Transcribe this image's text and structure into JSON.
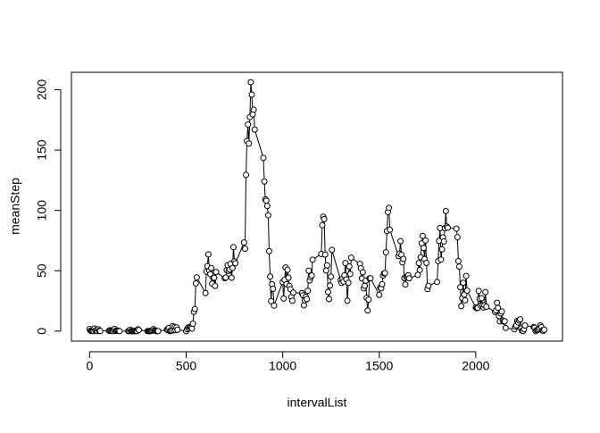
{
  "chart_data": {
    "type": "line",
    "xlabel": "intervalList",
    "ylabel": "meanStep",
    "color": "#000000",
    "x": [
      0,
      5,
      10,
      15,
      20,
      25,
      30,
      35,
      40,
      45,
      50,
      55,
      100,
      105,
      110,
      115,
      120,
      125,
      130,
      135,
      140,
      145,
      150,
      155,
      200,
      205,
      210,
      215,
      220,
      225,
      230,
      235,
      240,
      245,
      250,
      255,
      300,
      305,
      310,
      315,
      320,
      325,
      330,
      335,
      340,
      345,
      350,
      355,
      400,
      405,
      410,
      415,
      420,
      425,
      430,
      435,
      440,
      445,
      450,
      455,
      500,
      505,
      510,
      515,
      520,
      525,
      530,
      535,
      540,
      545,
      550,
      555,
      600,
      605,
      610,
      615,
      620,
      625,
      630,
      635,
      640,
      645,
      650,
      655,
      700,
      705,
      710,
      715,
      720,
      725,
      730,
      735,
      740,
      745,
      750,
      755,
      800,
      805,
      810,
      815,
      820,
      825,
      830,
      835,
      840,
      845,
      850,
      855,
      900,
      905,
      910,
      915,
      920,
      925,
      930,
      935,
      940,
      945,
      950,
      955,
      1000,
      1005,
      1010,
      1015,
      1020,
      1025,
      1030,
      1035,
      1040,
      1045,
      1050,
      1055,
      1100,
      1105,
      1110,
      1115,
      1120,
      1125,
      1130,
      1135,
      1140,
      1145,
      1150,
      1155,
      1200,
      1205,
      1210,
      1215,
      1220,
      1225,
      1230,
      1235,
      1240,
      1245,
      1250,
      1255,
      1300,
      1305,
      1310,
      1315,
      1320,
      1325,
      1330,
      1335,
      1340,
      1345,
      1350,
      1355,
      1400,
      1405,
      1410,
      1415,
      1420,
      1425,
      1430,
      1435,
      1440,
      1445,
      1450,
      1455,
      1500,
      1505,
      1510,
      1515,
      1520,
      1525,
      1530,
      1535,
      1540,
      1545,
      1550,
      1555,
      1600,
      1605,
      1610,
      1615,
      1620,
      1625,
      1630,
      1635,
      1640,
      1645,
      1650,
      1655,
      1700,
      1705,
      1710,
      1715,
      1720,
      1725,
      1730,
      1735,
      1740,
      1745,
      1750,
      1755,
      1800,
      1805,
      1810,
      1815,
      1820,
      1825,
      1830,
      1835,
      1840,
      1845,
      1850,
      1855,
      1900,
      1905,
      1910,
      1915,
      1920,
      1925,
      1930,
      1935,
      1940,
      1945,
      1950,
      1955,
      2000,
      2005,
      2010,
      2015,
      2020,
      2025,
      2030,
      2035,
      2040,
      2045,
      2050,
      2055,
      2100,
      2105,
      2110,
      2115,
      2120,
      2125,
      2130,
      2135,
      2140,
      2145,
      2150,
      2155,
      2200,
      2205,
      2210,
      2215,
      2220,
      2225,
      2230,
      2235,
      2240,
      2245,
      2250,
      2255,
      2300,
      2305,
      2310,
      2315,
      2320,
      2325,
      2330,
      2335,
      2340,
      2345,
      2350,
      2355
    ],
    "values": [
      1.7,
      0.3,
      0.1,
      0.2,
      0.1,
      2.1,
      0.5,
      0.9,
      0,
      1.5,
      0.3,
      0.1,
      0.3,
      0.7,
      0.2,
      0.3,
      0,
      1.1,
      1.8,
      0.2,
      0.2,
      0.4,
      0.3,
      0,
      0,
      0,
      1.1,
      0,
      0,
      0.1,
      0,
      0.2,
      0,
      0,
      1.5,
      0.9,
      0,
      0,
      0,
      0,
      0.2,
      0.6,
      1.6,
      0.6,
      0.5,
      0.1,
      0,
      0,
      1.2,
      0.9,
      2.6,
      0,
      0.3,
      0.4,
      4.1,
      0.7,
      3.5,
      0.8,
      3.1,
      1.1,
      0,
      1.6,
      3.0,
      2.2,
      3.3,
      3.0,
      2.1,
      6.1,
      16.0,
      18.3,
      39.5,
      44.5,
      31.5,
      49.3,
      53.8,
      63.5,
      50.0,
      47.1,
      52.2,
      39.3,
      44.0,
      44.2,
      37.4,
      49.0,
      43.8,
      44.4,
      50.5,
      54.5,
      49.9,
      51.0,
      55.7,
      44.3,
      52.3,
      69.5,
      57.8,
      56.2,
      73.4,
      68.2,
      129.4,
      157.5,
      171.2,
      155.4,
      177.3,
      206.2,
      195.9,
      179.6,
      183.4,
      167.0,
      143.5,
      124.0,
      109.1,
      108.1,
      103.7,
      96.0,
      66.2,
      45.2,
      24.8,
      38.8,
      35.0,
      21.1,
      40.6,
      27.0,
      42.4,
      52.7,
      38.9,
      50.8,
      44.3,
      37.4,
      34.7,
      28.3,
      25.1,
      31.9,
      31.4,
      29.7,
      21.3,
      25.5,
      28.4,
      26.5,
      33.4,
      50.0,
      42.0,
      44.6,
      46.0,
      59.2,
      63.9,
      87.7,
      94.8,
      92.8,
      63.4,
      50.2,
      54.5,
      32.4,
      26.5,
      37.7,
      45.1,
      67.3,
      42.3,
      39.9,
      43.3,
      41.0,
      46.2,
      56.4,
      42.8,
      25.1,
      40.0,
      53.5,
      47.3,
      60.8,
      55.7,
      52.0,
      43.6,
      48.7,
      35.5,
      37.5,
      41.8,
      27.5,
      17.1,
      26.1,
      43.6,
      43.8,
      30.0,
      36.1,
      35.5,
      38.8,
      46.0,
      47.8,
      48.1,
      65.3,
      82.9,
      98.7,
      102.1,
      84.0,
      62.1,
      64.1,
      74.5,
      63.2,
      56.9,
      59.8,
      43.9,
      38.6,
      44.7,
      45.5,
      46.2,
      43.7,
      46.6,
      56.3,
      50.7,
      61.2,
      72.7,
      78.9,
      68.9,
      59.7,
      75.1,
      56.5,
      34.8,
      37.5,
      40.7,
      58.0,
      74.7,
      85.3,
      59.3,
      67.8,
      77.7,
      74.2,
      85.3,
      99.5,
      86.6,
      85.6,
      84.9,
      77.8,
      58.0,
      53.4,
      36.3,
      20.7,
      27.4,
      40.0,
      30.2,
      25.5,
      45.7,
      33.5,
      19.6,
      19.0,
      19.3,
      33.3,
      26.8,
      21.2,
      27.3,
      21.3,
      19.5,
      21.3,
      32.3,
      20.2,
      15.9,
      17.2,
      23.5,
      19.2,
      12.5,
      8.0,
      14.7,
      16.3,
      8.7,
      7.8,
      8.1,
      2.6,
      1.5,
      3.7,
      4.8,
      8.5,
      7.1,
      8.7,
      9.8,
      2.2,
      0.3,
      0.1,
      1.6,
      4.6,
      3.3,
      2.8,
      0,
      0.8,
      1.0,
      1.6,
      2.6,
      4.7,
      3.3,
      0.6,
      0.2,
      1.1
    ],
    "xlim": [
      -94.2,
      2449.2
    ],
    "ylim": [
      -8.25,
      214.42
    ],
    "xticks": [
      0,
      500,
      1000,
      1500,
      2000
    ],
    "yticks": [
      0,
      50,
      100,
      150,
      200
    ]
  }
}
